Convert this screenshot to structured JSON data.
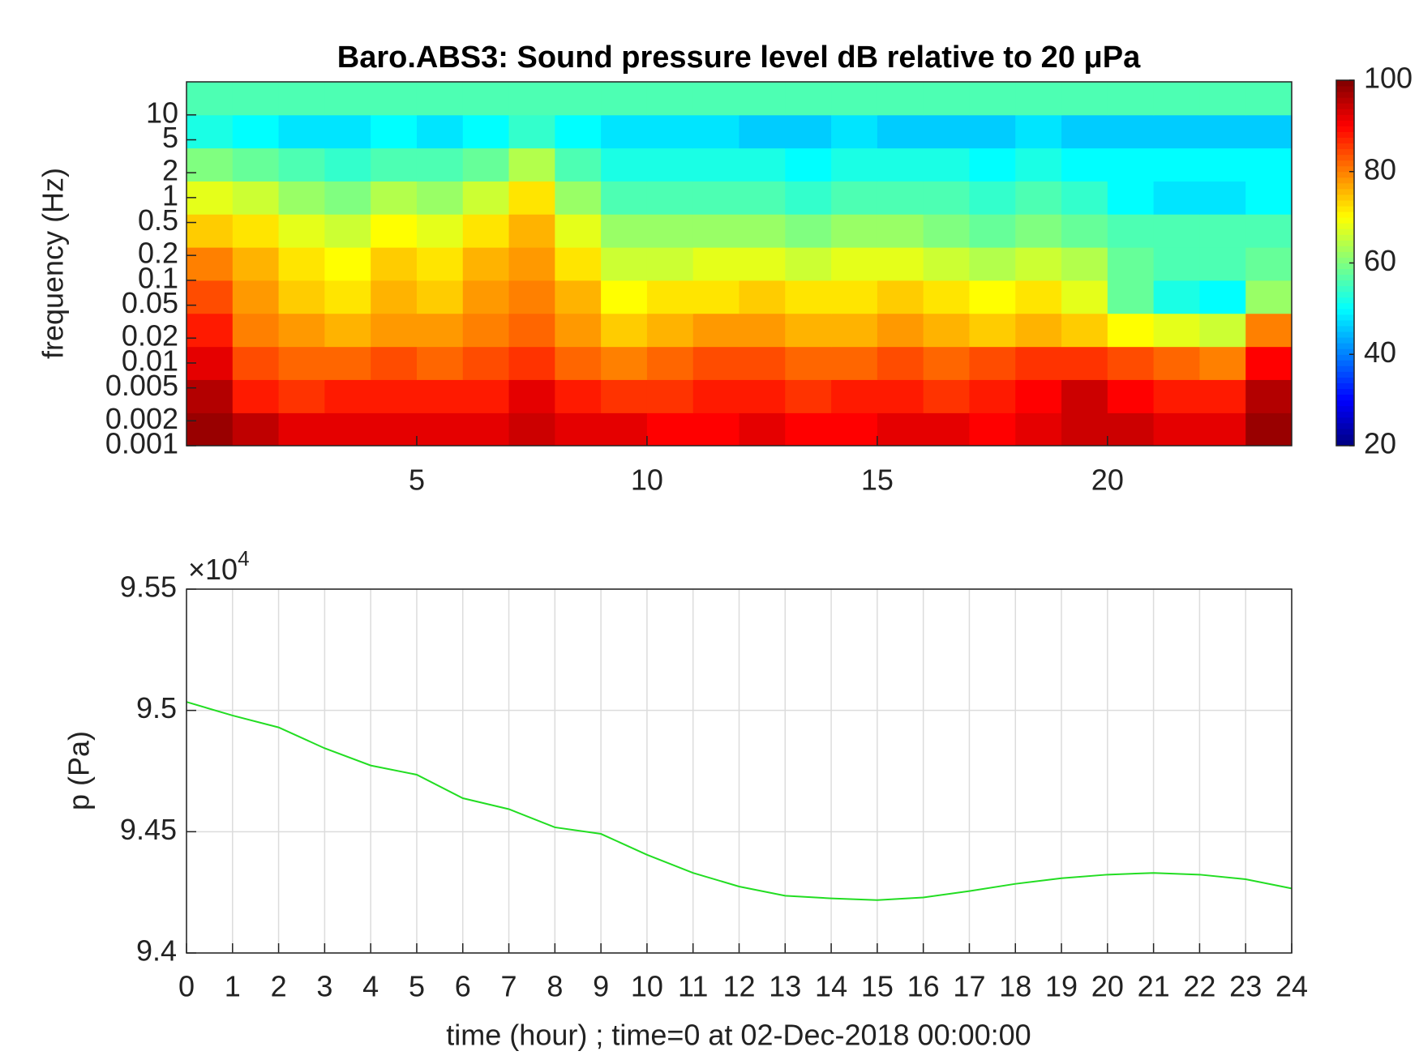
{
  "chart_data": [
    {
      "type": "heatmap",
      "title": "Baro.ABS3: Sound pressure level dB relative to 20 μPa",
      "ylabel": "frequency (Hz)",
      "x_edges": [
        0,
        1,
        2,
        3,
        4,
        5,
        6,
        7,
        8,
        9,
        10,
        11,
        12,
        13,
        14,
        15,
        16,
        17,
        18,
        19,
        20,
        21,
        22,
        23,
        24
      ],
      "y_edges": [
        0.001,
        0.0025,
        0.0063,
        0.0158,
        0.0398,
        0.1,
        0.251,
        0.631,
        1.585,
        3.98,
        10,
        25.1
      ],
      "values": [
        [
          98,
          95,
          92,
          92,
          92,
          92,
          92,
          94,
          92,
          92,
          90,
          90,
          92,
          90,
          90,
          92,
          92,
          90,
          92,
          94,
          94,
          92,
          92,
          98
        ],
        [
          96,
          88,
          86,
          88,
          88,
          88,
          88,
          92,
          88,
          86,
          86,
          88,
          88,
          86,
          88,
          88,
          86,
          88,
          90,
          94,
          90,
          88,
          88,
          96
        ],
        [
          92,
          84,
          82,
          82,
          84,
          82,
          84,
          86,
          82,
          80,
          82,
          84,
          84,
          82,
          82,
          84,
          82,
          84,
          86,
          86,
          84,
          82,
          80,
          90
        ],
        [
          88,
          80,
          78,
          76,
          78,
          78,
          80,
          82,
          78,
          74,
          76,
          78,
          78,
          76,
          76,
          78,
          76,
          74,
          76,
          74,
          70,
          68,
          66,
          80
        ],
        [
          84,
          78,
          74,
          72,
          76,
          74,
          78,
          80,
          76,
          70,
          72,
          72,
          74,
          72,
          72,
          74,
          72,
          70,
          72,
          68,
          58,
          52,
          50,
          62
        ],
        [
          80,
          76,
          72,
          70,
          74,
          72,
          76,
          78,
          72,
          66,
          66,
          68,
          68,
          66,
          68,
          68,
          66,
          64,
          66,
          64,
          58,
          56,
          56,
          58
        ],
        [
          74,
          72,
          68,
          66,
          70,
          68,
          72,
          76,
          68,
          62,
          62,
          62,
          62,
          60,
          62,
          62,
          60,
          58,
          60,
          58,
          56,
          56,
          56,
          56
        ],
        [
          68,
          66,
          62,
          60,
          64,
          62,
          66,
          72,
          62,
          56,
          56,
          56,
          56,
          54,
          56,
          56,
          56,
          54,
          56,
          54,
          50,
          48,
          48,
          50
        ],
        [
          60,
          58,
          56,
          54,
          56,
          56,
          58,
          64,
          56,
          52,
          52,
          52,
          52,
          50,
          52,
          52,
          52,
          50,
          52,
          50,
          50,
          50,
          50,
          50
        ],
        [
          52,
          50,
          48,
          48,
          50,
          48,
          50,
          54,
          50,
          48,
          48,
          48,
          46,
          46,
          48,
          46,
          46,
          46,
          48,
          46,
          46,
          46,
          46,
          46
        ],
        [
          56,
          56,
          56,
          56,
          56,
          56,
          56,
          56,
          56,
          56,
          56,
          56,
          56,
          56,
          56,
          56,
          56,
          56,
          56,
          56,
          56,
          56,
          56,
          56
        ]
      ],
      "xlim": [
        0,
        24
      ],
      "xticks": [
        5,
        10,
        15,
        20
      ],
      "ylim": [
        0.001,
        25.1
      ],
      "ylog": true,
      "yticks": [
        0.001,
        0.002,
        0.005,
        0.01,
        0.02,
        0.05,
        0.1,
        0.2,
        0.5,
        1,
        2,
        5,
        10
      ],
      "colormap": "jet",
      "clim": [
        20,
        100
      ],
      "cticks": [
        20,
        40,
        60,
        80,
        100
      ]
    },
    {
      "type": "line",
      "xlabel": "time (hour) ; time=0 at 02-Dec-2018 00:00:00",
      "ylabel": "p (Pa)",
      "y_exponent": "×10",
      "y_exponent_power": "4",
      "x": [
        0,
        1,
        2,
        3,
        4,
        5,
        6,
        7,
        8,
        9,
        10,
        11,
        12,
        13,
        14,
        15,
        16,
        17,
        18,
        19,
        20,
        21,
        22,
        23,
        24
      ],
      "values": [
        95035,
        94979,
        94930,
        94844,
        94773,
        94735,
        94638,
        94593,
        94518,
        94491,
        94405,
        94330,
        94274,
        94236,
        94225,
        94218,
        94229,
        94255,
        94285,
        94308,
        94323,
        94330,
        94323,
        94304,
        94266
      ],
      "color": "#22dd22",
      "xlim": [
        0,
        24
      ],
      "xticks": [
        0,
        1,
        2,
        3,
        4,
        5,
        6,
        7,
        8,
        9,
        10,
        11,
        12,
        13,
        14,
        15,
        16,
        17,
        18,
        19,
        20,
        21,
        22,
        23,
        24
      ],
      "ylim": [
        94000,
        95500
      ],
      "yticks": [
        {
          "value": 94000,
          "label": "9.4"
        },
        {
          "value": 94500,
          "label": "9.45"
        },
        {
          "value": 95000,
          "label": "9.5"
        },
        {
          "value": 95500,
          "label": "9.55"
        }
      ],
      "grid": true
    }
  ]
}
